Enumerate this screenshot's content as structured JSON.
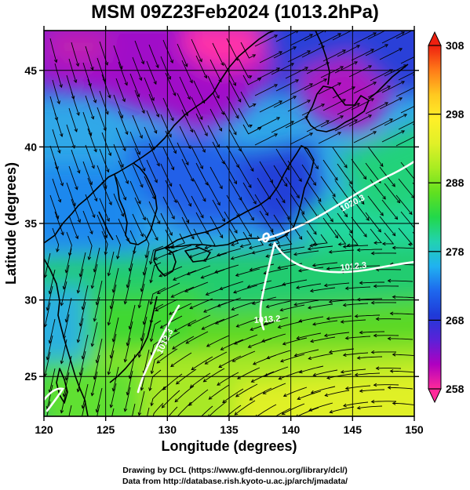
{
  "title": "MSM 09Z23Feb2024 (1013.2hPa)",
  "credits": {
    "line1": "Drawing by DCL (https://www.gfd-dennou.org/library/dcl/)",
    "line2": "Data from http://database.rish.kyoto-u.ac.jp/arch/jmadata/"
  },
  "map": {
    "xlabel": "Longitude (degrees)",
    "ylabel": "Latitude  (degrees)",
    "xlim": [
      120,
      150
    ],
    "ylim": [
      22.4,
      47.6
    ],
    "xticks": [
      "120",
      "125",
      "130",
      "135",
      "140",
      "145",
      "150"
    ],
    "yticks": [
      "25",
      "30",
      "35",
      "40",
      "45"
    ],
    "grid": true,
    "field": "temperature",
    "vectors": "streamlines",
    "isobar_labels": [
      "1020.3",
      "1012.3",
      "1013.2",
      "1012.3"
    ]
  },
  "colorbar": {
    "min": 258,
    "max": 308,
    "labels": [
      "308",
      "298",
      "288",
      "278",
      "268",
      "258"
    ],
    "colors": [
      "#ff2a9a",
      "#b000c0",
      "#5a22d8",
      "#1f3ad8",
      "#1e68ee",
      "#20b2f0",
      "#22d2b0",
      "#22d84a",
      "#60e020",
      "#a8ec22",
      "#e0f028",
      "#fff028",
      "#ffc820",
      "#ff7a18",
      "#ee2010"
    ]
  }
}
